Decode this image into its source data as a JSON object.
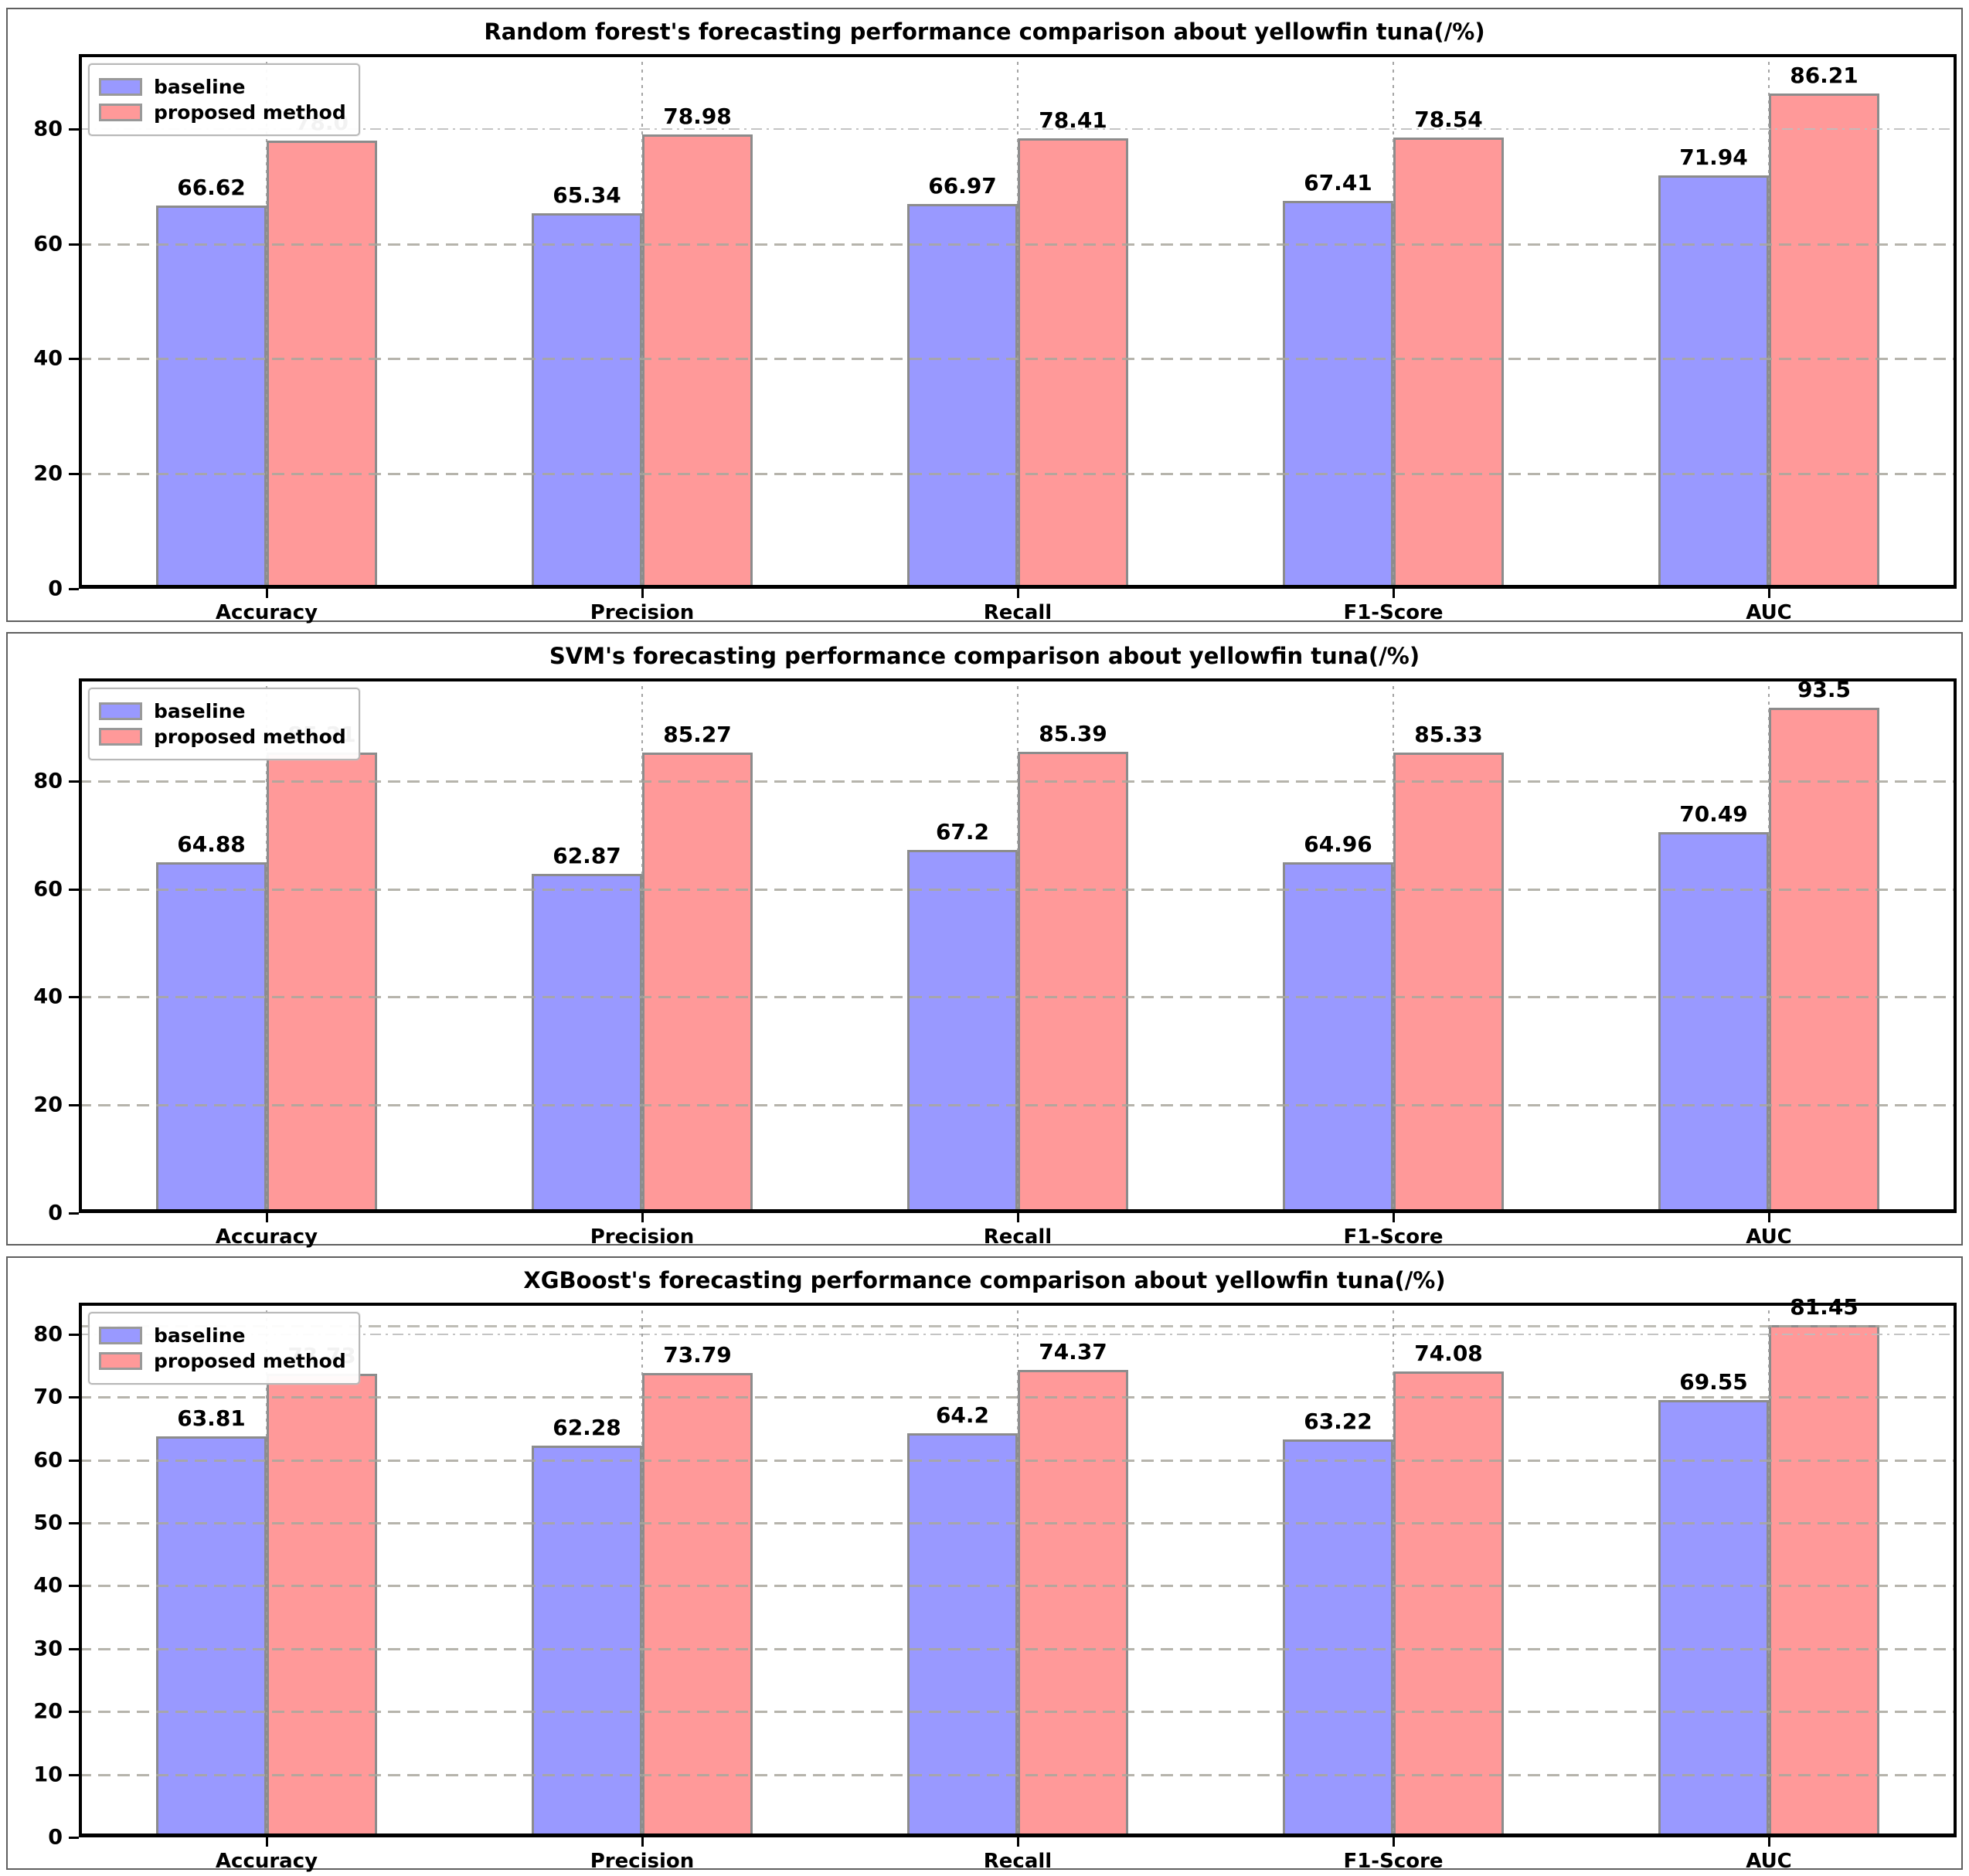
{
  "figure": {
    "background": "#ffffff",
    "panel_border_color": "#5f5f5f",
    "bar_edge_color": "#8c8c8c",
    "grid_color": "#a9a79d",
    "legend_labels": [
      "baseline",
      "proposed method"
    ]
  },
  "chart_data": [
    {
      "type": "bar",
      "title": "Random forest's forecasting performance comparison about yellowfin tuna(/%)",
      "categories": [
        "Accuracy",
        "Precision",
        "Recall",
        "F1-Score",
        "AUC"
      ],
      "series": [
        {
          "name": "baseline",
          "color": "#9999ff",
          "values": [
            66.62,
            65.34,
            66.97,
            67.41,
            71.94
          ],
          "labels": [
            "66.62",
            "65.34",
            "66.97",
            "67.41",
            "71.94"
          ]
        },
        {
          "name": "proposed method",
          "color": "#ff9999",
          "values": [
            78.0,
            78.98,
            78.41,
            78.54,
            86.21
          ],
          "labels": [
            "78.0",
            "78.98",
            "78.41",
            "78.54",
            "86.21"
          ]
        }
      ],
      "xlabel": "",
      "ylabel": "",
      "ylim": [
        0,
        93
      ],
      "yticks": [
        0,
        20,
        40,
        60,
        80
      ],
      "ytick_labels": [
        "0",
        "20",
        "40",
        "60",
        "80"
      ],
      "dashdot_gridlines_at": [
        80
      ],
      "extra_dashed_gridline_at": null,
      "grid": "horizontal-and-vertical-dashed",
      "legend_position": "upper-left"
    },
    {
      "type": "bar",
      "title": "SVM's forecasting performance comparison about yellowfin tuna(/%)",
      "categories": [
        "Accuracy",
        "Precision",
        "Recall",
        "F1-Score",
        "AUC"
      ],
      "series": [
        {
          "name": "baseline",
          "color": "#9999ff",
          "values": [
            64.88,
            62.87,
            67.2,
            64.96,
            70.49
          ],
          "labels": [
            "64.88",
            "62.87",
            "67.2",
            "64.96",
            "70.49"
          ]
        },
        {
          "name": "proposed method",
          "color": "#ff9999",
          "values": [
            85.21,
            85.27,
            85.39,
            85.33,
            93.5
          ],
          "labels": [
            "85.21",
            "85.27",
            "85.39",
            "85.33",
            "93.5"
          ]
        }
      ],
      "xlabel": "",
      "ylabel": "",
      "ylim": [
        0,
        99
      ],
      "yticks": [
        0,
        20,
        40,
        60,
        80
      ],
      "ytick_labels": [
        "0",
        "20",
        "40",
        "60",
        "80"
      ],
      "dashdot_gridlines_at": [],
      "extra_dashed_gridline_at": null,
      "grid": "horizontal-and-vertical-dashed",
      "legend_position": "upper-left"
    },
    {
      "type": "bar",
      "title": "XGBoost's forecasting performance comparison about yellowfin tuna(/%)",
      "categories": [
        "Accuracy",
        "Precision",
        "Recall",
        "F1-Score",
        "AUC"
      ],
      "series": [
        {
          "name": "baseline",
          "color": "#9999ff",
          "values": [
            63.81,
            62.28,
            64.2,
            63.22,
            69.55
          ],
          "labels": [
            "63.81",
            "62.28",
            "64.2",
            "63.22",
            "69.55"
          ]
        },
        {
          "name": "proposed method",
          "color": "#ff9999",
          "values": [
            73.73,
            73.79,
            74.37,
            74.08,
            81.45
          ],
          "labels": [
            "73.73",
            "73.79",
            "74.37",
            "74.08",
            "81.45"
          ]
        }
      ],
      "xlabel": "",
      "ylabel": "",
      "ylim": [
        0,
        85
      ],
      "yticks": [
        0,
        10,
        20,
        30,
        40,
        50,
        60,
        70,
        80
      ],
      "ytick_labels": [
        "0",
        "10",
        "20",
        "30",
        "40",
        "50",
        "60",
        "70",
        "80"
      ],
      "dashdot_gridlines_at": [
        80
      ],
      "extra_dashed_gridline_at": 81.3,
      "grid": "horizontal-and-vertical-dashed",
      "legend_position": "upper-left"
    }
  ]
}
